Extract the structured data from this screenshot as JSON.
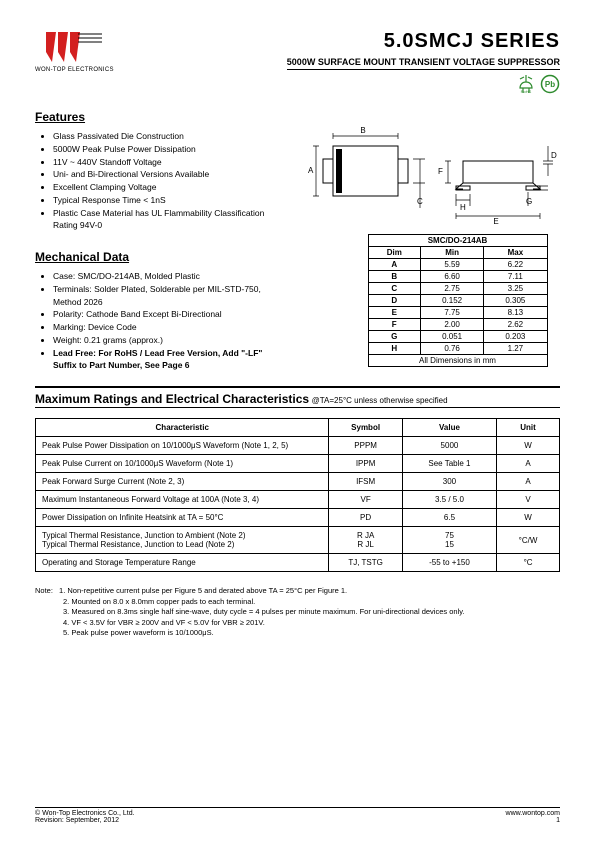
{
  "header": {
    "company": "WON-TOP ELECTRONICS",
    "title": "5.0SMCJ  SERIES",
    "subtitle": "5000W  SURFACE  MOUNT  TRANSIENT  VOLTAGE  SUPPRESSOR",
    "rohs": "RoHS",
    "pb": "Pb"
  },
  "features": {
    "title": "Features",
    "items": [
      "Glass Passivated Die Construction",
      "5000W Peak Pulse Power Dissipation",
      "11V ~ 440V Standoff Voltage",
      "Uni- and Bi-Directional Versions Available",
      "Excellent Clamping Voltage",
      "Typical Response Time < 1nS",
      "Plastic Case Material has UL Flammability Classification Rating 94V-0"
    ]
  },
  "mechanical": {
    "title": "Mechanical Data",
    "items": [
      "Case: SMC/DO-214AB, Molded Plastic",
      "Terminals: Solder Plated, Solderable per MIL-STD-750, Method 2026",
      "Polarity: Cathode Band Except Bi-Directional",
      "Marking: Device Code",
      "Weight: 0.21 grams (approx.)",
      "Lead Free: For RoHS / Lead Free Version, Add \"-LF\" Suffix to Part Number, See Page 6"
    ]
  },
  "dim_table": {
    "caption": "SMC/DO-214AB",
    "headers": [
      "Dim",
      "Min",
      "Max"
    ],
    "rows": [
      [
        "A",
        "5.59",
        "6.22"
      ],
      [
        "B",
        "6.60",
        "7.11"
      ],
      [
        "C",
        "2.75",
        "3.25"
      ],
      [
        "D",
        "0.152",
        "0.305"
      ],
      [
        "E",
        "7.75",
        "8.13"
      ],
      [
        "F",
        "2.00",
        "2.62"
      ],
      [
        "G",
        "0.051",
        "0.203"
      ],
      [
        "H",
        "0.76",
        "1.27"
      ]
    ],
    "footer": "All Dimensions in mm"
  },
  "ratings": {
    "title": "Maximum Ratings and Electrical Characteristics",
    "condition": " @TA=25°C unless otherwise specified",
    "headers": [
      "Characteristic",
      "Symbol",
      "Value",
      "Unit"
    ],
    "rows": [
      {
        "c": "Peak Pulse Power Dissipation on 10/1000μS Waveform (Note 1, 2, 5)",
        "s": "PPPM",
        "v": "5000",
        "u": "W"
      },
      {
        "c": "Peak Pulse Current on 10/1000μS Waveform (Note 1)",
        "s": "IPPM",
        "v": "See Table 1",
        "u": "A"
      },
      {
        "c": "Peak Forward Surge Current (Note 2, 3)",
        "s": "IFSM",
        "v": "300",
        "u": "A"
      },
      {
        "c": "Maximum Instantaneous Forward Voltage at 100A (Note 3, 4)",
        "s": "VF",
        "v": "3.5 / 5.0",
        "u": "V"
      },
      {
        "c": "Power Dissipation on Infinite Heatsink at TA = 50°C",
        "s": "PD",
        "v": "6.5",
        "u": "W"
      },
      {
        "c": "Typical Thermal Resistance, Junction to Ambient (Note 2)\nTypical Thermal Resistance, Junction to Lead (Note 2)",
        "s": "R JA\nR JL",
        "v": "75\n15",
        "u": "°C/W"
      },
      {
        "c": "Operating and Storage Temperature Range",
        "s": "TJ, TSTG",
        "v": "-55 to +150",
        "u": "°C"
      }
    ]
  },
  "notes": {
    "label": "Note:",
    "items": [
      "1. Non-repetitive current pulse per Figure 5 and derated above TA = 25°C per Figure 1.",
      "2. Mounted on 8.0 x 8.0mm copper pads to each terminal.",
      "3. Measured on 8.3ms single half sine-wave, duty cycle = 4 pulses per minute maximum. For uni-directional devices only.",
      "4. VF < 3.5V for VBR ≥ 200V and VF < 5.0V for VBR ≥ 201V.",
      "5. Peak pulse power waveform is 10/1000μS."
    ]
  },
  "footer": {
    "left1": "© Won-Top Electronics Co., Ltd.",
    "left2": "Revision: September, 2012",
    "right1": "www.wontop.com",
    "right2": "1"
  },
  "colors": {
    "logo_red": "#d32020",
    "pb_green": "#2e8b2e",
    "rohs_green": "#2e8b2e"
  }
}
